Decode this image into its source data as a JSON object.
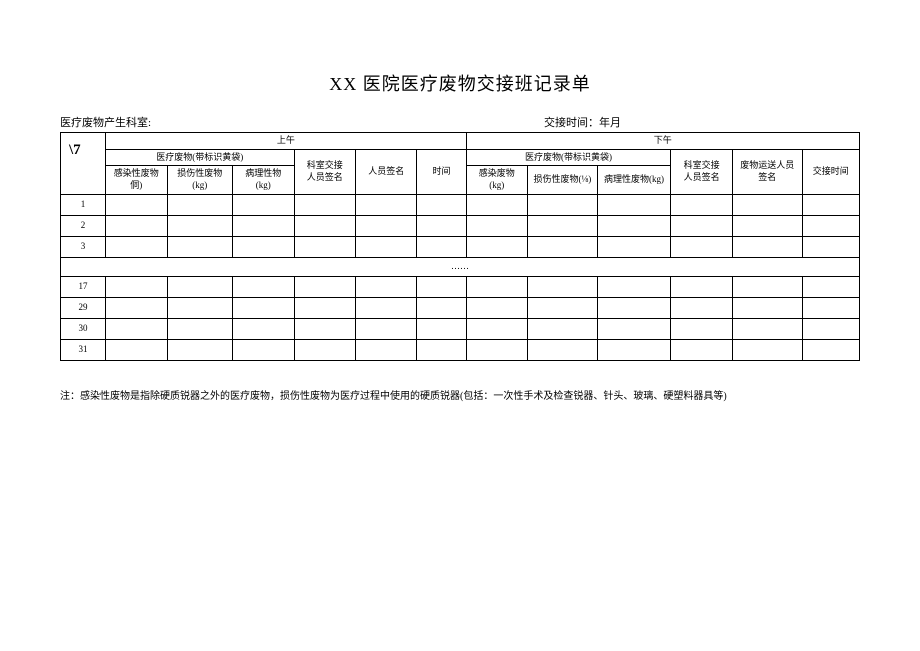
{
  "title": "XX 医院医疗废物交接班记录单",
  "meta": {
    "left_label": "医疗废物产生科室:",
    "right_label": "交接时间：年月"
  },
  "header": {
    "diag": "\\7",
    "period_am": "上午",
    "period_pm": "下午",
    "waste_group_am": "医疗废物(带标识黄袋)",
    "waste_group_pm": "医疗废物(带标识黄袋)",
    "am_cols": {
      "c1": "感染性废物\n侗)",
      "c2": "损伤性废物\n(kg)",
      "c3": "病理性物\n(kg)",
      "c4": "科室交接\n人员签名",
      "c5": "人员签名",
      "c6": "时间"
    },
    "pm_cols": {
      "c1": "感染废物\n(kg)",
      "c2": "损伤性废物(⅛)",
      "c3": "病理性废物(kg)",
      "c4": "科室交接\n人员签名",
      "c5": "废物运送人员\n签名",
      "c6": "交接时间"
    }
  },
  "rows_top": [
    "1",
    "2",
    "3"
  ],
  "ellipsis": "……",
  "rows_bottom": [
    "17",
    "29",
    "30",
    "31"
  ],
  "note": "注：感染性废物是指除硬质锐器之外的医疗废物，损伤性废物为医疗过程中使用的硬质锐器(包括：一次性手术及检查锐器、针头、玻璃、硬塑料器具等)",
  "style": {
    "page_bg": "#ffffff",
    "border_color": "#000000",
    "title_fontsize": 18,
    "header_fontsize": 9,
    "body_fontsize": 9,
    "note_fontsize": 10
  }
}
